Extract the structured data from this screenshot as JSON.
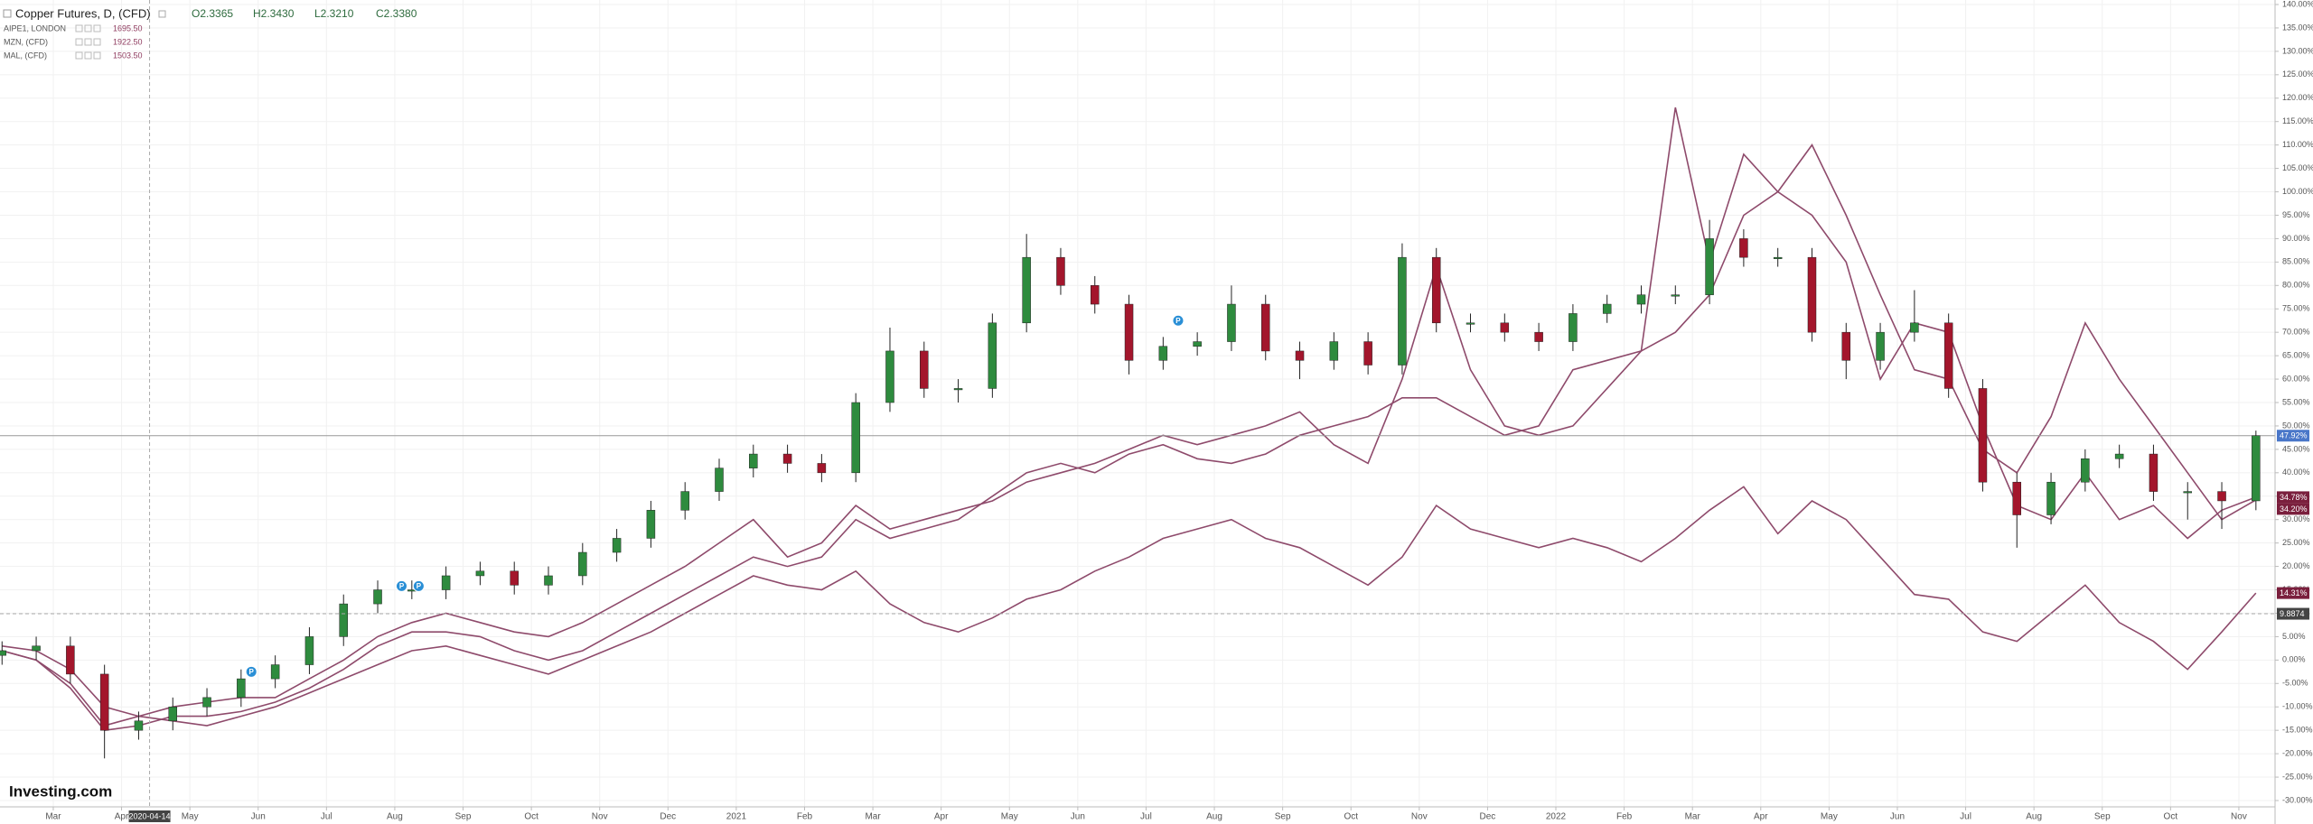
{
  "chart_data": {
    "type": "candlestick",
    "title": "Copper Futures, D, (CFD)",
    "ohlc_labels": [
      "O2.3365",
      "H2.3430",
      "L2.3210",
      "C2.3380"
    ],
    "logo": "Investing.com",
    "x": [
      -0.75,
      -0.25,
      0.25,
      0.75,
      1.25,
      1.75,
      2.25,
      2.75,
      3.25,
      3.75,
      4.25,
      4.75,
      5.25,
      5.75,
      6.25,
      6.75,
      7.25,
      7.75,
      8.25,
      8.75,
      9.25,
      9.75,
      10.25,
      10.75,
      11.25,
      11.75,
      12.25,
      12.75,
      13.25,
      13.75,
      14.25,
      14.75,
      15.25,
      15.75,
      16.25,
      16.75,
      17.25,
      17.75,
      18.25,
      18.75,
      19.25,
      19.75,
      20.25,
      20.75,
      21.25,
      21.75,
      22.25,
      22.75,
      23.25,
      23.75,
      24.25,
      24.75,
      25.25,
      25.75,
      26.25,
      26.75,
      27.25,
      27.75,
      28.25,
      28.75,
      29.25,
      29.75,
      30.25,
      30.75,
      31.25,
      31.75,
      32.25
    ],
    "xlim": [
      -0.78,
      32.53
    ],
    "xticks": [
      {
        "value": 0,
        "label": "Mar"
      },
      {
        "value": 1,
        "label": "Apr"
      },
      {
        "value": 2,
        "label": "May"
      },
      {
        "value": 3,
        "label": "Jun"
      },
      {
        "value": 4,
        "label": "Jul"
      },
      {
        "value": 5,
        "label": "Aug"
      },
      {
        "value": 6,
        "label": "Sep"
      },
      {
        "value": 7,
        "label": "Oct"
      },
      {
        "value": 8,
        "label": "Nov"
      },
      {
        "value": 9,
        "label": "Dec"
      },
      {
        "value": 10,
        "label": "2021"
      },
      {
        "value": 11,
        "label": "Feb"
      },
      {
        "value": 12,
        "label": "Mar"
      },
      {
        "value": 13,
        "label": "Apr"
      },
      {
        "value": 14,
        "label": "May"
      },
      {
        "value": 15,
        "label": "Jun"
      },
      {
        "value": 16,
        "label": "Jul"
      },
      {
        "value": 17,
        "label": "Aug"
      },
      {
        "value": 18,
        "label": "Sep"
      },
      {
        "value": 19,
        "label": "Oct"
      },
      {
        "value": 20,
        "label": "Nov"
      },
      {
        "value": 21,
        "label": "Dec"
      },
      {
        "value": 22,
        "label": "2022"
      },
      {
        "value": 23,
        "label": "Feb"
      },
      {
        "value": 24,
        "label": "Mar"
      },
      {
        "value": 25,
        "label": "Apr"
      },
      {
        "value": 26,
        "label": "May"
      },
      {
        "value": 27,
        "label": "Jun"
      },
      {
        "value": 28,
        "label": "Jul"
      },
      {
        "value": 29,
        "label": "Aug"
      },
      {
        "value": 30,
        "label": "Sep"
      },
      {
        "value": 31,
        "label": "Oct"
      },
      {
        "value": 32,
        "label": "Nov"
      }
    ],
    "ylim": [
      -30,
      140
    ],
    "yticks": [
      {
        "value": 140,
        "label": "140.00%"
      },
      {
        "value": 135,
        "label": "135.00%"
      },
      {
        "value": 130,
        "label": "130.00%"
      },
      {
        "value": 125,
        "label": "125.00%"
      },
      {
        "value": 120,
        "label": "120.00%"
      },
      {
        "value": 115,
        "label": "115.00%"
      },
      {
        "value": 110,
        "label": "110.00%"
      },
      {
        "value": 105,
        "label": "105.00%"
      },
      {
        "value": 100,
        "label": "100.00%"
      },
      {
        "value": 95,
        "label": "95.00%"
      },
      {
        "value": 90,
        "label": "90.00%"
      },
      {
        "value": 85,
        "label": "85.00%"
      },
      {
        "value": 80,
        "label": "80.00%"
      },
      {
        "value": 75,
        "label": "75.00%"
      },
      {
        "value": 70,
        "label": "70.00%"
      },
      {
        "value": 65,
        "label": "65.00%"
      },
      {
        "value": 60,
        "label": "60.00%"
      },
      {
        "value": 55,
        "label": "55.00%"
      },
      {
        "value": 50,
        "label": "50.00%"
      },
      {
        "value": 45,
        "label": "45.00%"
      },
      {
        "value": 40,
        "label": "40.00%"
      },
      {
        "value": 35,
        "label": "35.00%"
      },
      {
        "value": 30,
        "label": "30.00%"
      },
      {
        "value": 25,
        "label": "25.00%"
      },
      {
        "value": 20,
        "label": "20.00%"
      },
      {
        "value": 15,
        "label": "15.00%"
      },
      {
        "value": 10,
        "label": "10.00%"
      },
      {
        "value": 5,
        "label": "5.00%"
      },
      {
        "value": 0,
        "label": "0.00%"
      },
      {
        "value": -5,
        "label": "-5.00%"
      },
      {
        "value": -10,
        "label": "-10.00%"
      },
      {
        "value": -15,
        "label": "-15.00%"
      },
      {
        "value": -20,
        "label": "-20.00%"
      },
      {
        "value": -25,
        "label": "-25.00%"
      },
      {
        "value": -30,
        "label": "-30.00%"
      }
    ],
    "grid": true,
    "candles": {
      "up_color": "#2e8b3e",
      "down_color": "#a3162c",
      "tag_color": "#4a77c9",
      "last_label": "47.92%",
      "open": [
        1,
        2,
        3,
        -3,
        -15,
        -13,
        -10,
        -8,
        -4,
        -1,
        5,
        12,
        15,
        15,
        18,
        19,
        16,
        18,
        23,
        26,
        32,
        36,
        41,
        44,
        42,
        40,
        55,
        66,
        58,
        58,
        72,
        86,
        80,
        76,
        64,
        67,
        68,
        76,
        66,
        64,
        68,
        63,
        86,
        72,
        72,
        70,
        68,
        74,
        76,
        78,
        78,
        90,
        86,
        86,
        70,
        64,
        70,
        72,
        58,
        38,
        31,
        38,
        43,
        44,
        36,
        36,
        34
      ],
      "high": [
        4,
        5,
        5,
        -1,
        -11,
        -8,
        -6,
        -2,
        1,
        7,
        14,
        17,
        17,
        20,
        21,
        21,
        20,
        25,
        28,
        34,
        38,
        43,
        46,
        46,
        44,
        57,
        71,
        68,
        60,
        74,
        91,
        88,
        82,
        78,
        69,
        70,
        80,
        78,
        68,
        70,
        70,
        89,
        88,
        74,
        74,
        72,
        76,
        78,
        80,
        80,
        94,
        92,
        88,
        88,
        72,
        72,
        79,
        74,
        60,
        40,
        40,
        45,
        46,
        46,
        38,
        38,
        49
      ],
      "low": [
        -1,
        0,
        -5,
        -21,
        -17,
        -15,
        -12,
        -10,
        -6,
        -3,
        3,
        10,
        13,
        13,
        16,
        14,
        14,
        16,
        21,
        24,
        30,
        34,
        39,
        40,
        38,
        38,
        53,
        56,
        55,
        56,
        70,
        78,
        74,
        61,
        62,
        65,
        66,
        64,
        60,
        62,
        61,
        61,
        70,
        70,
        68,
        66,
        66,
        72,
        74,
        76,
        76,
        84,
        84,
        68,
        60,
        62,
        68,
        56,
        36,
        24,
        29,
        36,
        41,
        34,
        30,
        28,
        32
      ],
      "close": [
        2,
        3,
        -3,
        -15,
        -13,
        -10,
        -8,
        -4,
        -1,
        5,
        12,
        15,
        15,
        18,
        19,
        16,
        18,
        23,
        26,
        32,
        36,
        41,
        44,
        42,
        40,
        55,
        66,
        58,
        58,
        72,
        86,
        80,
        76,
        64,
        67,
        68,
        76,
        66,
        64,
        68,
        63,
        86,
        72,
        72,
        70,
        68,
        74,
        76,
        78,
        78,
        90,
        86,
        86,
        70,
        64,
        70,
        72,
        58,
        38,
        31,
        38,
        43,
        44,
        36,
        36,
        34,
        47.92
      ]
    },
    "series": [
      {
        "name": "AIPE1, LONDON",
        "legend_value": "1695.50",
        "color": "#8e4a6b",
        "tag_color": "#7a1f3d",
        "last_label": "34.78%",
        "values": [
          2,
          0,
          -5,
          -14,
          -12,
          -10,
          -9,
          -8,
          -8,
          -4,
          0,
          5,
          8,
          10,
          8,
          6,
          5,
          8,
          12,
          16,
          20,
          25,
          30,
          22,
          25,
          33,
          28,
          30,
          32,
          34,
          38,
          40,
          42,
          45,
          48,
          46,
          48,
          50,
          53,
          46,
          42,
          60,
          84,
          62,
          50,
          48,
          50,
          58,
          66,
          118,
          85,
          108,
          100,
          95,
          85,
          60,
          72,
          70,
          50,
          33,
          30,
          40,
          30,
          33,
          26,
          32,
          34.78
        ]
      },
      {
        "name": "MZN, (CFD)",
        "legend_value": "1922.50",
        "color": "#8e4a6b",
        "tag_color": "#7a1f3d",
        "last_label": "34.20%",
        "values": [
          2,
          0,
          -6,
          -15,
          -14,
          -12,
          -12,
          -11,
          -9,
          -6,
          -2,
          3,
          6,
          6,
          5,
          2,
          0,
          2,
          6,
          10,
          14,
          18,
          22,
          20,
          22,
          30,
          26,
          28,
          30,
          35,
          40,
          42,
          40,
          44,
          46,
          43,
          42,
          44,
          48,
          50,
          52,
          56,
          56,
          52,
          48,
          50,
          62,
          64,
          66,
          70,
          78,
          95,
          100,
          110,
          95,
          78,
          62,
          60,
          45,
          40,
          52,
          72,
          60,
          50,
          40,
          30,
          34.2
        ]
      },
      {
        "name": "MAL, (CFD)",
        "legend_value": "1503.50",
        "color": "#8e4a6b",
        "tag_color": "#7a1f3d",
        "last_label": "14.31%",
        "values": [
          3,
          2,
          -2,
          -10,
          -12,
          -13,
          -14,
          -12,
          -10,
          -7,
          -4,
          -1,
          2,
          3,
          1,
          -1,
          -3,
          0,
          3,
          6,
          10,
          14,
          18,
          16,
          15,
          19,
          12,
          8,
          6,
          9,
          13,
          15,
          19,
          22,
          26,
          28,
          30,
          26,
          24,
          20,
          16,
          22,
          33,
          28,
          26,
          24,
          26,
          24,
          21,
          26,
          32,
          37,
          27,
          34,
          30,
          22,
          14,
          13,
          6,
          4,
          10,
          16,
          8,
          4,
          -2,
          6,
          14.31
        ]
      }
    ],
    "crosshair": {
      "x": 1.41,
      "x_label": "2020-04-14",
      "y": 9.8874
    },
    "events": [
      {
        "x": 2.9,
        "y": -2.5,
        "label": "P"
      },
      {
        "x": 5.1,
        "y": 15.8,
        "label": "P"
      },
      {
        "x": 5.35,
        "y": 15.8,
        "label": "P"
      },
      {
        "x": 16.47,
        "y": 72.5,
        "label": "P"
      }
    ]
  }
}
